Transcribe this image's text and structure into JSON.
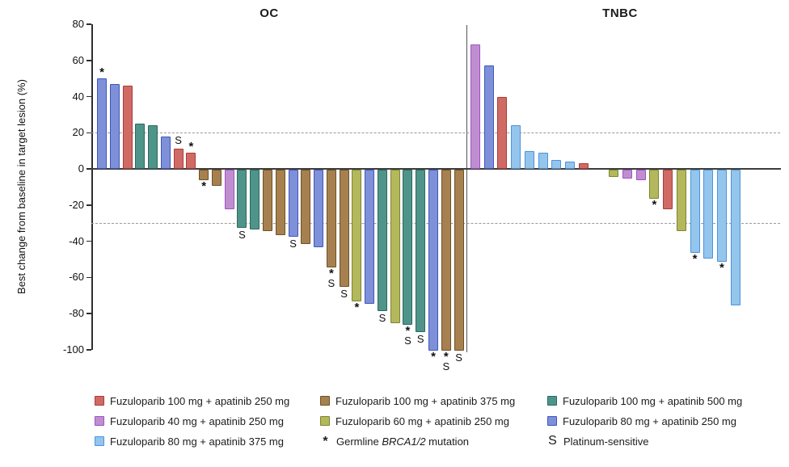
{
  "chart_data": {
    "type": "bar",
    "ylabel": "Best change from baseline in target lesion (%)",
    "ylim": [
      -100,
      80
    ],
    "yticks": [
      80,
      60,
      40,
      20,
      0,
      -20,
      -40,
      -60,
      -80,
      -100
    ],
    "reference_lines": {
      "upper": 20,
      "lower": -30
    },
    "grid": false,
    "legend_position": "bottom",
    "groups": [
      {
        "key": "red",
        "label": "Fuzuloparib 100 mg + apatinib 250 mg",
        "fill": "#d06a64",
        "stroke": "#a93c38"
      },
      {
        "key": "purple",
        "label": "Fuzuloparib 40 mg + apatinib 250 mg",
        "fill": "#c08ed0",
        "stroke": "#9c52c6"
      },
      {
        "key": "sky",
        "label": "Fuzuloparib 80 mg + apatinib 375 mg",
        "fill": "#94c5ed",
        "stroke": "#4e93d9"
      },
      {
        "key": "brown",
        "label": "Fuzuloparib 100 mg + apatinib 375 mg",
        "fill": "#a6814f",
        "stroke": "#6e5026"
      },
      {
        "key": "olive",
        "label": "Fuzuloparib 60 mg + apatinib 250 mg",
        "fill": "#b3b85c",
        "stroke": "#7d8431"
      },
      {
        "key": "teal",
        "label": "Fuzuloparib 100 mg + apatinib 500 mg",
        "fill": "#4f9489",
        "stroke": "#2c685f"
      },
      {
        "key": "blue",
        "label": "Fuzuloparib 80 mg + apatinib 250 mg",
        "fill": "#7e90d8",
        "stroke": "#4156bb"
      }
    ],
    "symbols": [
      {
        "symbol": "*",
        "label_pre": "Germline ",
        "label_italic": "BRCA1/2",
        "label_post": " mutation"
      },
      {
        "symbol": "S",
        "label": "Platinum-sensitive"
      }
    ],
    "panels": [
      {
        "title": "OC",
        "bars": [
          {
            "value": 50,
            "group": "blue",
            "marks": [
              "*"
            ]
          },
          {
            "value": 47,
            "group": "blue"
          },
          {
            "value": 46,
            "group": "red"
          },
          {
            "value": 25,
            "group": "teal"
          },
          {
            "value": 24,
            "group": "teal"
          },
          {
            "value": 18,
            "group": "blue"
          },
          {
            "value": 11,
            "group": "red",
            "marks": [
              "S"
            ]
          },
          {
            "value": 9,
            "group": "red",
            "marks": [
              "*"
            ]
          },
          {
            "value": -6,
            "group": "brown",
            "marks": [
              "*"
            ]
          },
          {
            "value": -9,
            "group": "brown"
          },
          {
            "value": -22,
            "group": "purple"
          },
          {
            "value": -32,
            "group": "teal",
            "marks": [
              "S"
            ]
          },
          {
            "value": -33,
            "group": "teal"
          },
          {
            "value": -34,
            "group": "brown"
          },
          {
            "value": -36,
            "group": "brown"
          },
          {
            "value": -37,
            "group": "blue",
            "marks": [
              "S"
            ]
          },
          {
            "value": -41,
            "group": "brown"
          },
          {
            "value": -43,
            "group": "blue"
          },
          {
            "value": -54,
            "group": "brown",
            "marks": [
              "*",
              "S"
            ]
          },
          {
            "value": -65,
            "group": "brown",
            "marks": [
              "S"
            ]
          },
          {
            "value": -73,
            "group": "olive",
            "marks": [
              "*"
            ]
          },
          {
            "value": -74,
            "group": "blue"
          },
          {
            "value": -78,
            "group": "teal",
            "marks": [
              "S"
            ]
          },
          {
            "value": -85,
            "group": "olive"
          },
          {
            "value": -86,
            "group": "teal",
            "marks": [
              "*",
              "S"
            ]
          },
          {
            "value": -90,
            "group": "teal",
            "marks": [
              "S"
            ]
          },
          {
            "value": -100,
            "group": "blue",
            "marks": [
              "*"
            ]
          },
          {
            "value": -100,
            "group": "brown",
            "marks": [
              "*",
              "S"
            ]
          },
          {
            "value": -100,
            "group": "brown",
            "marks": [
              "S"
            ]
          }
        ]
      },
      {
        "title": "TNBC",
        "gap_after_index": 8,
        "bars": [
          {
            "value": 69,
            "group": "purple"
          },
          {
            "value": 57,
            "group": "blue"
          },
          {
            "value": 40,
            "group": "red"
          },
          {
            "value": 24,
            "group": "sky"
          },
          {
            "value": 10,
            "group": "sky"
          },
          {
            "value": 9,
            "group": "sky"
          },
          {
            "value": 5,
            "group": "sky"
          },
          {
            "value": 4,
            "group": "sky"
          },
          {
            "value": 3,
            "group": "red"
          },
          {
            "value": -4,
            "group": "olive"
          },
          {
            "value": -5,
            "group": "purple"
          },
          {
            "value": -6,
            "group": "purple"
          },
          {
            "value": -16,
            "group": "olive",
            "marks": [
              "*"
            ]
          },
          {
            "value": -22,
            "group": "red"
          },
          {
            "value": -34,
            "group": "olive"
          },
          {
            "value": -46,
            "group": "sky",
            "marks": [
              "*"
            ]
          },
          {
            "value": -49,
            "group": "sky"
          },
          {
            "value": -51,
            "group": "sky",
            "marks": [
              "*"
            ]
          },
          {
            "value": -75,
            "group": "sky"
          }
        ]
      }
    ]
  }
}
